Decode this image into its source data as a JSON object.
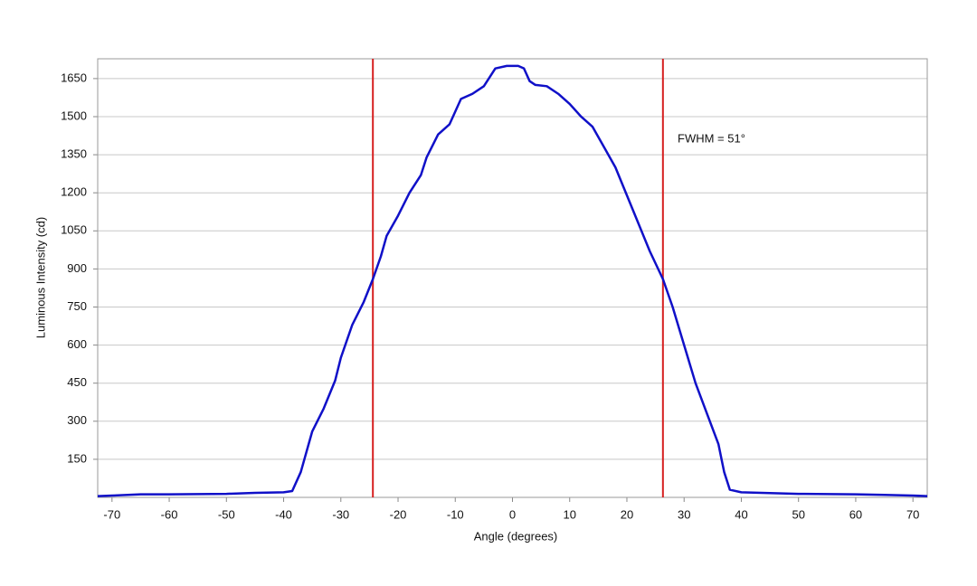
{
  "chart_data": {
    "type": "line",
    "x_label": "Angle (degrees)",
    "y_label": "Luminous Intensity (cd)",
    "annotation": "FWHM = 51°",
    "xlim": [
      -72.5,
      72.5
    ],
    "xticks": [
      -70,
      -60,
      -50,
      -40,
      -30,
      -20,
      -10,
      0,
      10,
      20,
      30,
      40,
      50,
      60,
      70
    ],
    "ylim": [
      0,
      1728
    ],
    "yticks": [
      150,
      300,
      450,
      600,
      750,
      900,
      1050,
      1200,
      1350,
      1500,
      1650
    ],
    "grid": true,
    "vlines": [
      {
        "x": -24.4,
        "color": "#d62020"
      },
      {
        "x": 26.3,
        "color": "#d62020"
      }
    ],
    "series": [
      {
        "color": "#1010c8",
        "x": [
          -72.5,
          -70,
          -65,
          -60,
          -50,
          -45,
          -40,
          -38.5,
          -37,
          -35,
          -33,
          -31,
          -30,
          -28,
          -26,
          -24.4,
          -23,
          -22,
          -20,
          -18,
          -16,
          -15,
          -13,
          -11,
          -9,
          -7,
          -5,
          -3,
          -1,
          1,
          2,
          3,
          4,
          6,
          8,
          10,
          12,
          14,
          16,
          18,
          20,
          22,
          24,
          26.3,
          28,
          30,
          32,
          34,
          36,
          37,
          38,
          40,
          50,
          60,
          65,
          70,
          72.5
        ],
        "values": [
          5,
          7,
          12,
          12,
          14,
          18,
          20,
          25,
          100,
          260,
          350,
          460,
          550,
          680,
          770,
          860,
          950,
          1030,
          1110,
          1200,
          1270,
          1340,
          1430,
          1470,
          1570,
          1590,
          1620,
          1690,
          1700,
          1700,
          1690,
          1640,
          1625,
          1620,
          1590,
          1550,
          1500,
          1460,
          1380,
          1300,
          1190,
          1080,
          970,
          860,
          750,
          600,
          450,
          330,
          210,
          100,
          30,
          20,
          14,
          12,
          10,
          7,
          5
        ]
      }
    ]
  }
}
